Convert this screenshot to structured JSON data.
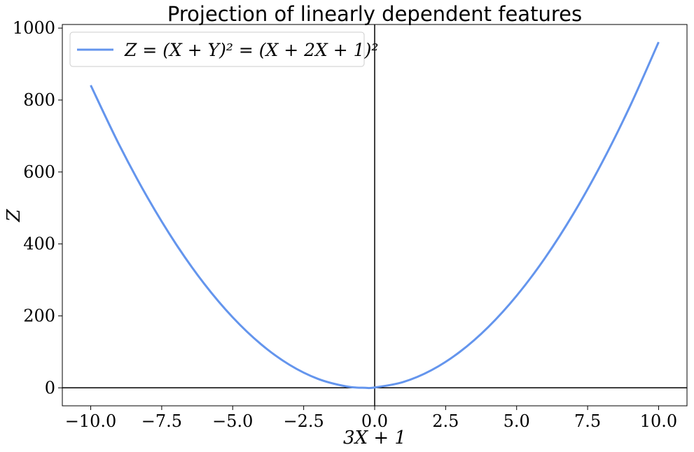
{
  "chart_data": {
    "type": "line",
    "title": "Projection of linearly dependent features",
    "xlabel": "3X + 1",
    "ylabel": "Z",
    "xlim": [
      -11.0,
      11.0
    ],
    "ylim": [
      -50,
      1010
    ],
    "xticks": [
      -10.0,
      -7.5,
      -5.0,
      -2.5,
      0.0,
      2.5,
      5.0,
      7.5,
      10.0
    ],
    "xtick_labels": [
      "−10.0",
      "−7.5",
      "−5.0",
      "−2.5",
      "0.0",
      "2.5",
      "5.0",
      "7.5",
      "10.0"
    ],
    "yticks": [
      0,
      200,
      400,
      600,
      800,
      1000
    ],
    "ytick_labels": [
      "0",
      "200",
      "400",
      "600",
      "800",
      "1000"
    ],
    "reference_lines": {
      "x": 0,
      "y": 0,
      "color": "#000000"
    },
    "grid": false,
    "legend_position": "top-left",
    "series": [
      {
        "name": "Z = (X + Y)² = (X + 2X + 1)²",
        "color": "#6495ED",
        "x": [
          -10.0,
          -9.0,
          -8.0,
          -7.0,
          -6.0,
          -5.0,
          -4.0,
          -3.0,
          -2.0,
          -1.0,
          -0.33,
          0.0,
          1.0,
          2.0,
          3.0,
          4.0,
          5.0,
          6.0,
          7.0,
          8.0,
          9.0,
          10.0
        ],
        "y": [
          841,
          676,
          529,
          400,
          289,
          196,
          121,
          64,
          25,
          4,
          0,
          1,
          16,
          49,
          100,
          169,
          256,
          361,
          484,
          625,
          784,
          961
        ]
      }
    ]
  }
}
